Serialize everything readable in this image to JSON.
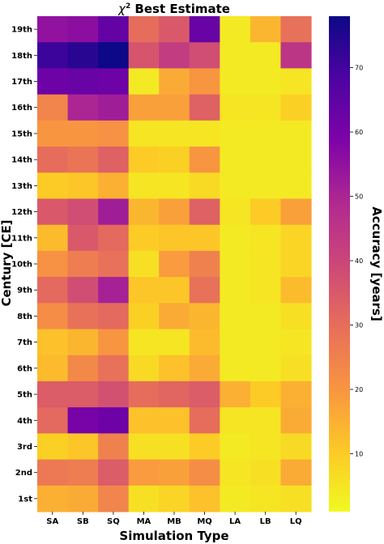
{
  "chart_data": {
    "type": "heatmap",
    "title_prefix": "χ",
    "title_superscript": "2",
    "title_suffix": " Best Estimate",
    "xlabel": "Simulation Type",
    "ylabel": "Century [CE]",
    "colorbar_label": "Accuracy [years]",
    "colormap": "plasma_r",
    "vmin": 1,
    "vmax": 78,
    "colorbar_ticks": [
      10,
      20,
      30,
      40,
      50,
      60,
      70
    ],
    "x_categories": [
      "SA",
      "SB",
      "SQ",
      "MA",
      "MB",
      "MQ",
      "LA",
      "LB",
      "LQ"
    ],
    "y_categories": [
      "19th",
      "18th",
      "17th",
      "16th",
      "15th",
      "14th",
      "13th",
      "12th",
      "11th",
      "10th",
      "9th",
      "8th",
      "7th",
      "6th",
      "5th",
      "4th",
      "3rd",
      "2nd",
      "1st"
    ],
    "values": [
      [
        55,
        56,
        64,
        30,
        35,
        63,
        4,
        14,
        29
      ],
      [
        71,
        74,
        78,
        36,
        43,
        38,
        4,
        4,
        45
      ],
      [
        62,
        63,
        62,
        4,
        16,
        20,
        4,
        4,
        5
      ],
      [
        24,
        50,
        52,
        18,
        18,
        33,
        5,
        5,
        9
      ],
      [
        20,
        20,
        21,
        5,
        5,
        5,
        4,
        4,
        4
      ],
      [
        30,
        28,
        33,
        10,
        9,
        20,
        4,
        4,
        4
      ],
      [
        10,
        11,
        15,
        5,
        5,
        7,
        4,
        4,
        4
      ],
      [
        35,
        38,
        52,
        14,
        18,
        33,
        5,
        10,
        18
      ],
      [
        13,
        35,
        31,
        10,
        11,
        11,
        4,
        5,
        8
      ],
      [
        21,
        26,
        29,
        6,
        19,
        25,
        4,
        5,
        8
      ],
      [
        31,
        38,
        51,
        11,
        11,
        29,
        4,
        5,
        13
      ],
      [
        22,
        29,
        31,
        9,
        16,
        14,
        4,
        4,
        6
      ],
      [
        12,
        14,
        20,
        5,
        5,
        13,
        4,
        4,
        5
      ],
      [
        13,
        23,
        29,
        7,
        12,
        16,
        4,
        4,
        6
      ],
      [
        34,
        34,
        37,
        30,
        32,
        34,
        15,
        10,
        15
      ],
      [
        31,
        60,
        62,
        12,
        12,
        30,
        5,
        5,
        16
      ],
      [
        9,
        11,
        25,
        6,
        6,
        10,
        4,
        5,
        7
      ],
      [
        27,
        26,
        34,
        19,
        18,
        22,
        5,
        6,
        16
      ],
      [
        15,
        16,
        24,
        6,
        8,
        12,
        4,
        5,
        6
      ]
    ]
  }
}
